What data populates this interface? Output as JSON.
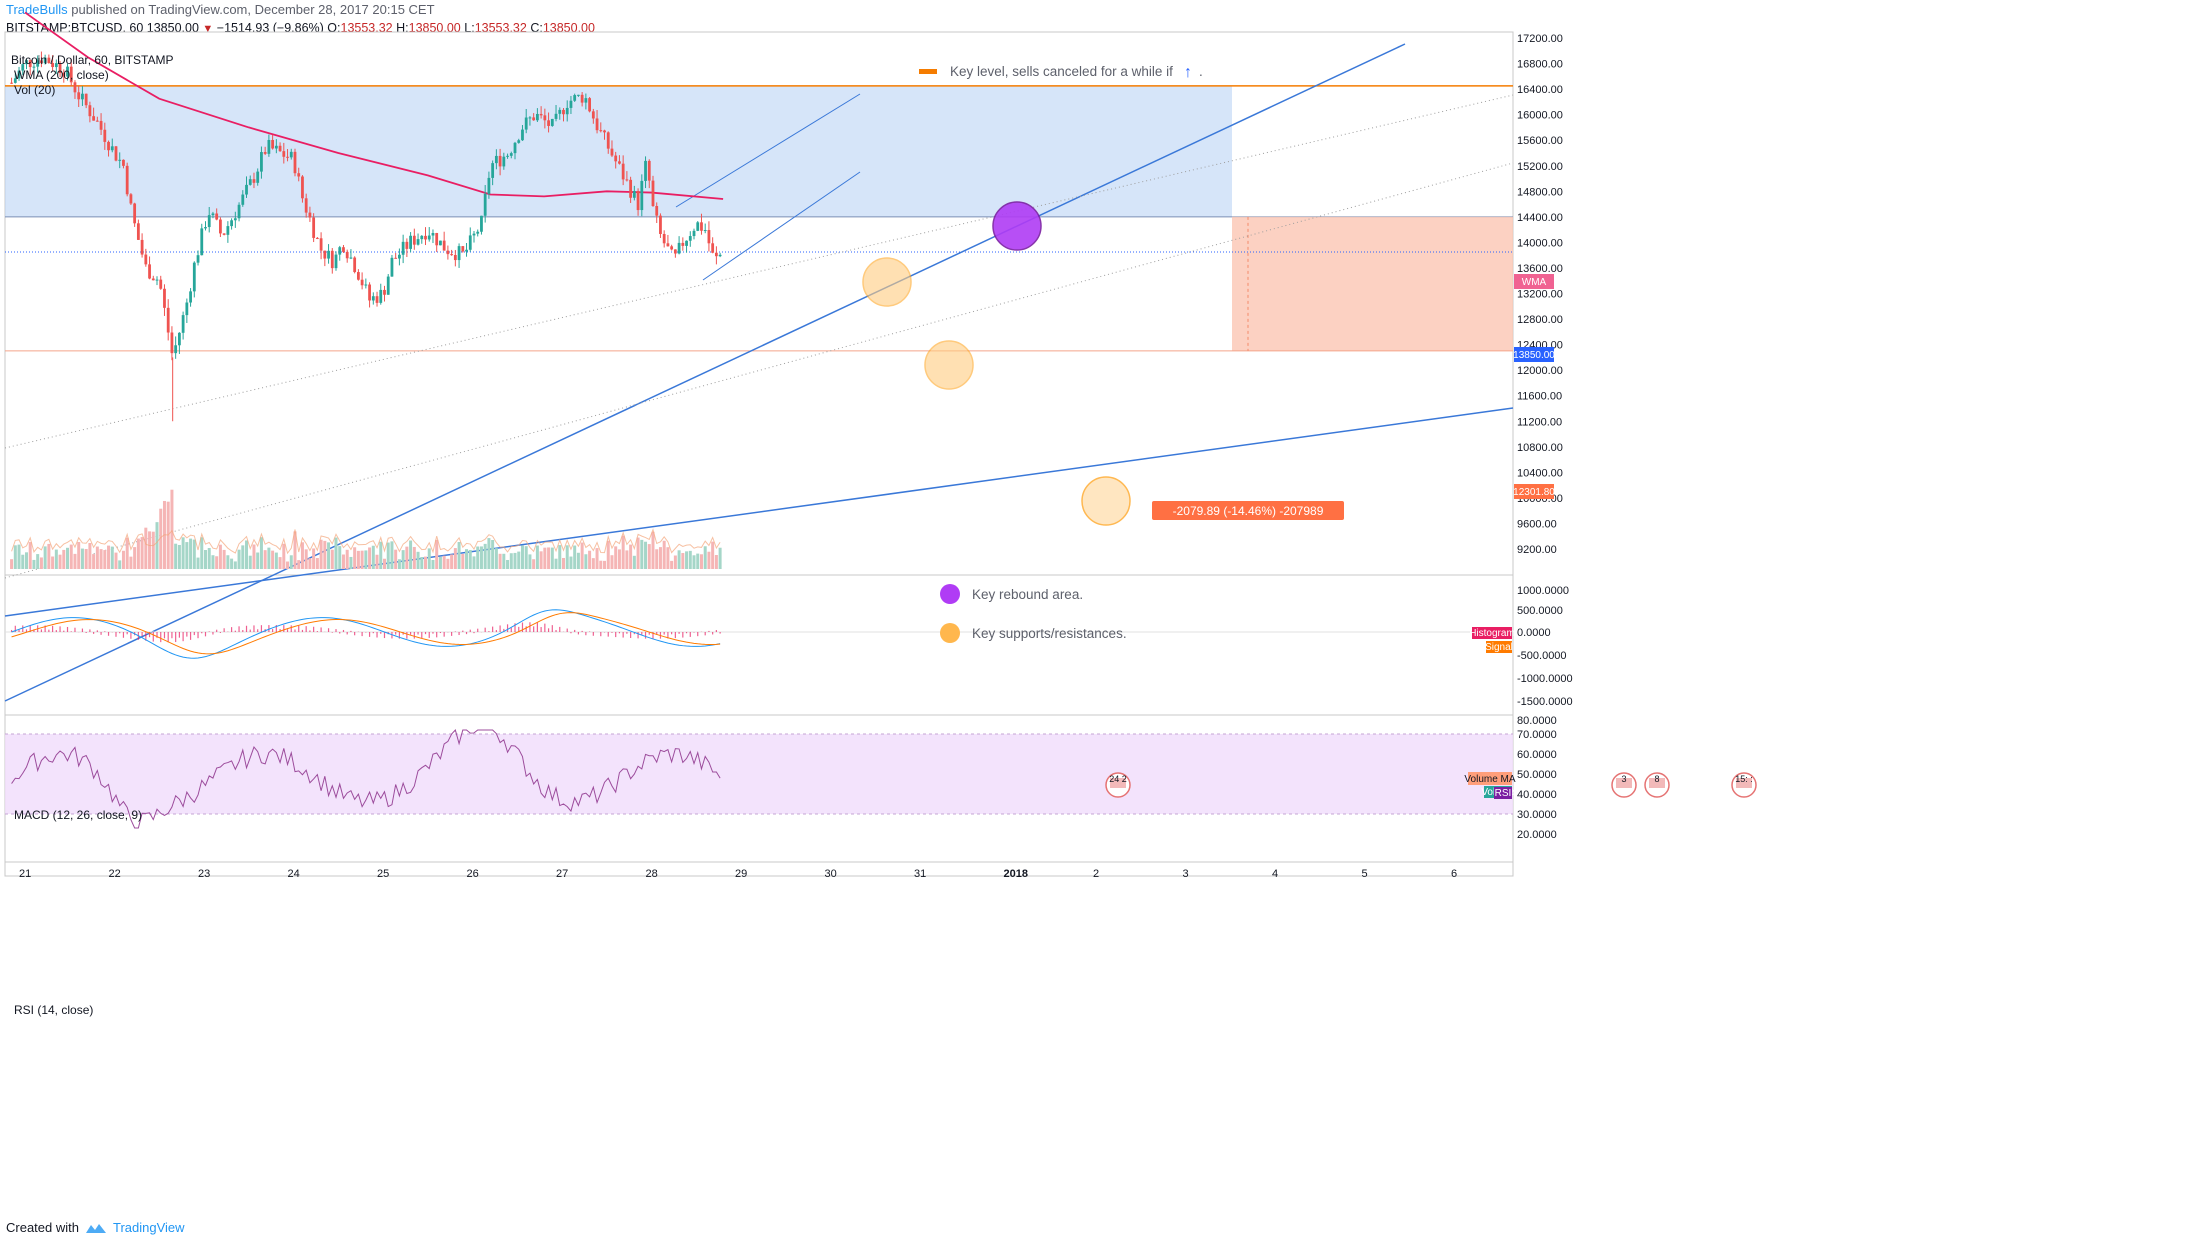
{
  "header": {
    "author": "TradeBulls",
    "published": "published on TradingView.com, December 28, 2017 20:15 CET",
    "ticker_line": {
      "symbol": "BITSTAMP:BTCUSD, 60",
      "last": "13850.00",
      "change": "−1514.93 (−9.86%)",
      "o_label": "O:",
      "o": "13553.32",
      "h_label": "H:",
      "h": "13850.00",
      "l_label": "L:",
      "l": "13553.32",
      "c_label": "C:",
      "c": "13850.00"
    }
  },
  "legend": {
    "symbol": "Bitcoin / Dollar, 60, BITSTAMP",
    "wma": "WMA (200, close)",
    "vol": "Vol (20)",
    "macd": "MACD (12, 26, close, 9)",
    "rsi": "RSI (14, close)"
  },
  "annotations": {
    "key_level": "Key level, sells canceled for a while if",
    "key_level_arrow": "↑",
    "key_level_suffix": ".",
    "rebound": "Key rebound area.",
    "supports": "Key supports/resistances.",
    "measure": "-2079.89 (-14.46%) -207989"
  },
  "price_badges": {
    "wma": "WMA",
    "last": "13850.00",
    "target": "12301.80",
    "volume_ma": "Volume MA",
    "volume": "Volume",
    "histogram": "Histogram",
    "signal": "Signal",
    "rsi": "RSI"
  },
  "event_markers": [
    "24 2",
    "3",
    "8",
    "15: :"
  ],
  "footer": {
    "created_with": "Created with",
    "brand": "TradingView"
  },
  "colors": {
    "up": "#26a69a",
    "down": "#ef5350",
    "wma": "#e91e63",
    "trend": "#2962ff",
    "key_level": "#f57c00",
    "zone_blue": "#bbd3f5",
    "zone_red": "#fbc6b3",
    "rebound": "#9c27b0",
    "support": "#ffb74d",
    "rsi_band": "#f0dcfb",
    "rsi_line": "#9c4c9c",
    "macd": "#2196f3",
    "signal": "#ff7b00"
  },
  "chart_data": {
    "type": "candlestick",
    "title": "Bitcoin / Dollar, 60, BITSTAMP",
    "interval": "60",
    "x_tick_labels": [
      "21",
      "22",
      "23",
      "24",
      "25",
      "26",
      "27",
      "28",
      "29",
      "30",
      "31",
      "2018",
      "2",
      "3",
      "4",
      "5",
      "6"
    ],
    "y_tick_labels": [
      "17200.00",
      "16800.00",
      "16400.00",
      "16000.00",
      "15600.00",
      "15200.00",
      "14800.00",
      "14400.00",
      "14000.00",
      "13600.00",
      "13200.00",
      "12800.00",
      "12400.00",
      "12000.00",
      "11600.00",
      "11200.00",
      "10800.00",
      "10400.00",
      "10000.00",
      "9600.00",
      "9200.00"
    ],
    "ylim": [
      9000,
      17300
    ],
    "key_level": 16450,
    "zones": {
      "blue": [
        14400,
        16450
      ],
      "red": [
        12301.8,
        14400
      ]
    },
    "last_price": 13850.0,
    "target_price": 12301.8,
    "wma_200": [
      {
        "d": 21.0,
        "p": 17600
      },
      {
        "d": 21.7,
        "p": 16900
      },
      {
        "d": 22.5,
        "p": 16250
      },
      {
        "d": 23.5,
        "p": 15800
      },
      {
        "d": 24.5,
        "p": 15400
      },
      {
        "d": 25.5,
        "p": 15050
      },
      {
        "d": 26.2,
        "p": 14750
      },
      {
        "d": 26.8,
        "p": 14720
      },
      {
        "d": 27.5,
        "p": 14800
      },
      {
        "d": 28.0,
        "p": 14780
      },
      {
        "d": 28.8,
        "p": 14680
      }
    ],
    "closes": [
      {
        "d": 20.85,
        "p": 16500
      },
      {
        "d": 21.0,
        "p": 16800
      },
      {
        "d": 21.2,
        "p": 16900
      },
      {
        "d": 21.45,
        "p": 16700
      },
      {
        "d": 21.6,
        "p": 16300
      },
      {
        "d": 21.8,
        "p": 15900
      },
      {
        "d": 22.0,
        "p": 15400
      },
      {
        "d": 22.1,
        "p": 15200
      },
      {
        "d": 22.2,
        "p": 14400
      },
      {
        "d": 22.35,
        "p": 13600
      },
      {
        "d": 22.5,
        "p": 13400
      },
      {
        "d": 22.6,
        "p": 12600
      },
      {
        "d": 22.65,
        "p": 12200
      },
      {
        "d": 22.8,
        "p": 13000
      },
      {
        "d": 22.9,
        "p": 13700
      },
      {
        "d": 23.05,
        "p": 14500
      },
      {
        "d": 23.2,
        "p": 14100
      },
      {
        "d": 23.4,
        "p": 14600
      },
      {
        "d": 23.55,
        "p": 15000
      },
      {
        "d": 23.7,
        "p": 15500
      },
      {
        "d": 23.85,
        "p": 15400
      },
      {
        "d": 24.0,
        "p": 15300
      },
      {
        "d": 24.1,
        "p": 14700
      },
      {
        "d": 24.3,
        "p": 13900
      },
      {
        "d": 24.45,
        "p": 13700
      },
      {
        "d": 24.55,
        "p": 14000
      },
      {
        "d": 24.7,
        "p": 13600
      },
      {
        "d": 24.85,
        "p": 13100
      },
      {
        "d": 25.0,
        "p": 13200
      },
      {
        "d": 25.1,
        "p": 13700
      },
      {
        "d": 25.3,
        "p": 14000
      },
      {
        "d": 25.5,
        "p": 14200
      },
      {
        "d": 25.7,
        "p": 13900
      },
      {
        "d": 25.9,
        "p": 13800
      },
      {
        "d": 26.1,
        "p": 14300
      },
      {
        "d": 26.2,
        "p": 15200
      },
      {
        "d": 26.4,
        "p": 15400
      },
      {
        "d": 26.55,
        "p": 15800
      },
      {
        "d": 26.7,
        "p": 16000
      },
      {
        "d": 26.9,
        "p": 15800
      },
      {
        "d": 27.05,
        "p": 16200
      },
      {
        "d": 27.25,
        "p": 16300
      },
      {
        "d": 27.4,
        "p": 15800
      },
      {
        "d": 27.55,
        "p": 15400
      },
      {
        "d": 27.7,
        "p": 15000
      },
      {
        "d": 27.85,
        "p": 14600
      },
      {
        "d": 27.95,
        "p": 15300
      },
      {
        "d": 28.0,
        "p": 14600
      },
      {
        "d": 28.1,
        "p": 14100
      },
      {
        "d": 28.25,
        "p": 13700
      },
      {
        "d": 28.35,
        "p": 14000
      },
      {
        "d": 28.5,
        "p": 14300
      },
      {
        "d": 28.6,
        "p": 14200
      },
      {
        "d": 28.7,
        "p": 13700
      },
      {
        "d": 28.8,
        "p": 13850
      }
    ],
    "macd": {
      "ylim": [
        -2000,
        1200
      ],
      "y_tick_labels": [
        "1000.0000",
        "500.0000",
        "0.0000",
        "-500.0000",
        "-1000.0000",
        "-1500.0000"
      ]
    },
    "rsi": {
      "ylim": [
        17,
        82
      ],
      "band": [
        30,
        70
      ],
      "y_tick_labels": [
        "80.0000",
        "70.0000",
        "60.0000",
        "50.0000",
        "40.0000",
        "30.0000",
        "20.0000"
      ]
    }
  }
}
